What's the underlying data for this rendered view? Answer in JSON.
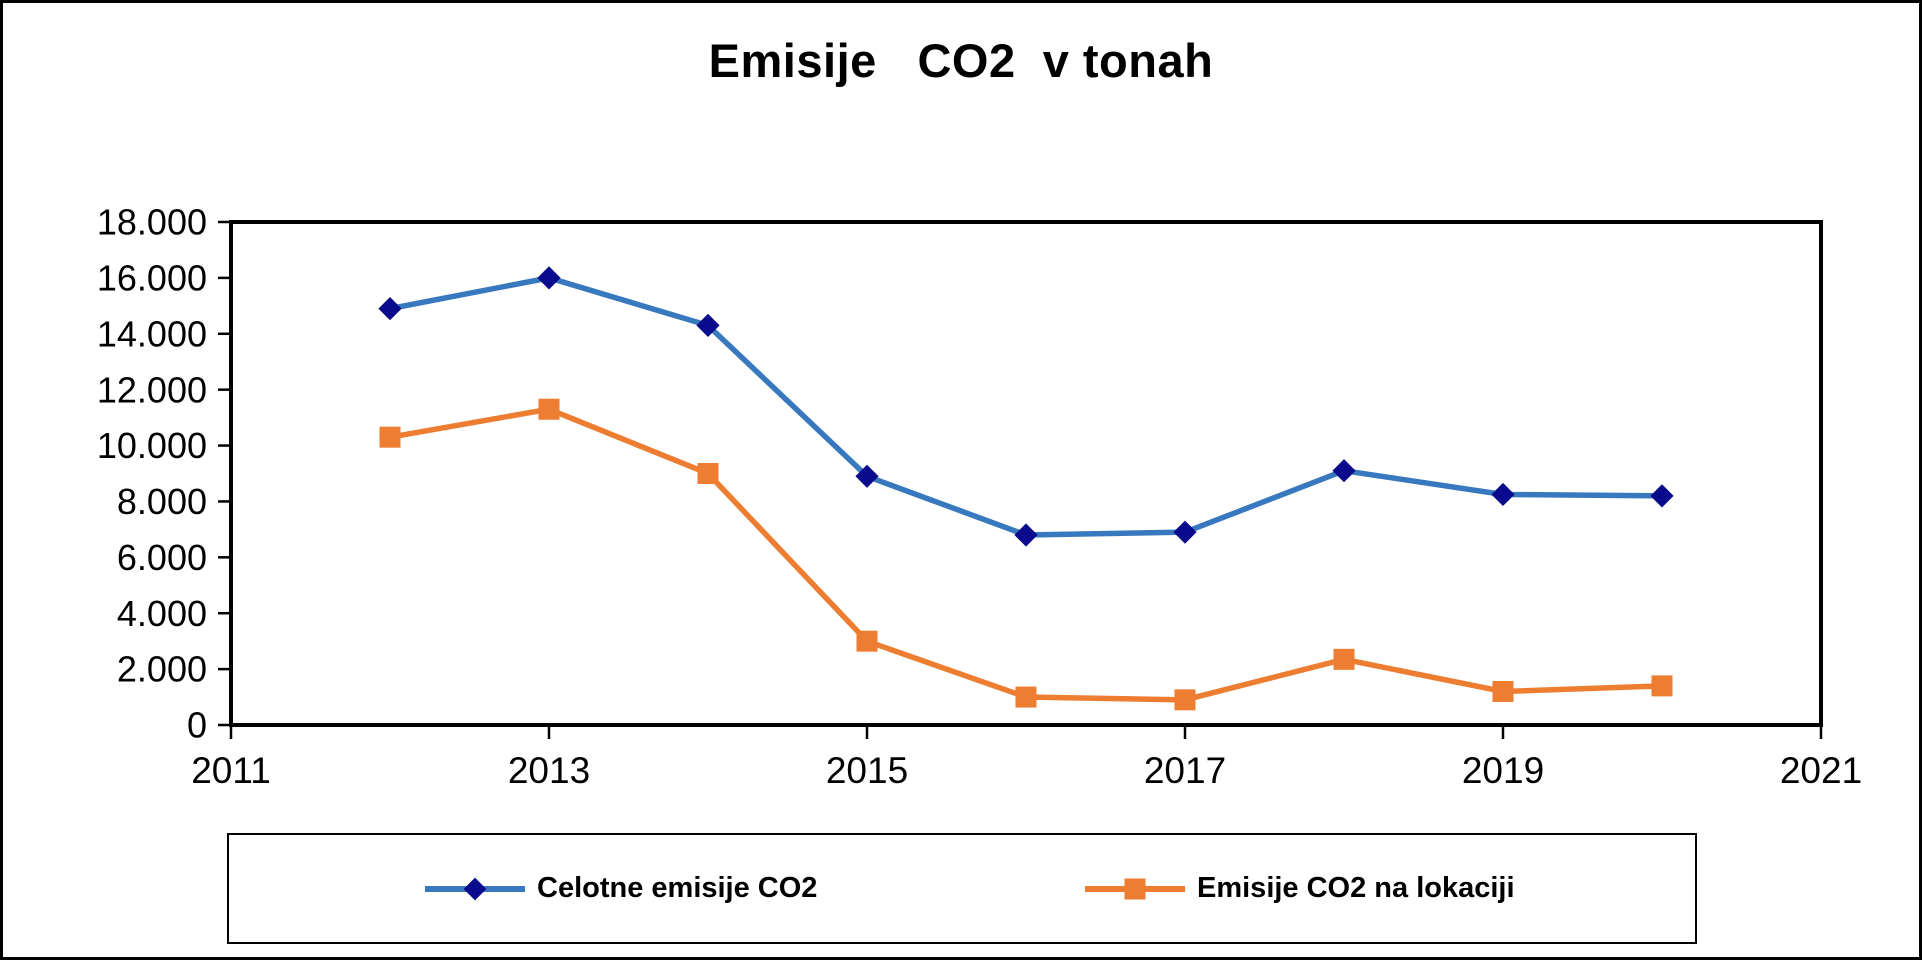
{
  "window": {
    "title": "Emisije   CO2  v tonah"
  },
  "chart_data": {
    "type": "line",
    "title": "Emisije   CO2  v tonah",
    "x": [
      2012,
      2013,
      2014,
      2015,
      2016,
      2017,
      2018,
      2019,
      2020
    ],
    "series": [
      {
        "name": "Celotne emisije CO2",
        "color": "#3778BE",
        "marker": "diamond",
        "marker_color": "#0A0A8C",
        "values": [
          14900,
          16000,
          14300,
          8900,
          6800,
          6900,
          9100,
          8250,
          8200
        ]
      },
      {
        "name": "Emisije CO2 na lokaciji",
        "color": "#ED7D31",
        "marker": "square",
        "marker_color": "#ED7D31",
        "values": [
          10300,
          11300,
          9000,
          3000,
          1000,
          900,
          2350,
          1200,
          1400
        ]
      }
    ],
    "xlim": [
      2011,
      2021
    ],
    "ylim": [
      0,
      18000
    ],
    "x_ticks": {
      "values": [
        2011,
        2013,
        2015,
        2017,
        2019,
        2021
      ],
      "labels": [
        "2011",
        "2013",
        "2015",
        "2017",
        "2019",
        "2021"
      ]
    },
    "y_ticks": {
      "values": [
        0,
        2000,
        4000,
        6000,
        8000,
        10000,
        12000,
        14000,
        16000,
        18000
      ],
      "labels": [
        "0",
        "2.000",
        "4.000",
        "6.000",
        "8.000",
        "10.000",
        "12.000",
        "14.000",
        "16.000",
        "18.000"
      ]
    },
    "grid": false,
    "legend_position": "bottom",
    "axis_color": "#000000",
    "background": "#FFFFFF"
  }
}
